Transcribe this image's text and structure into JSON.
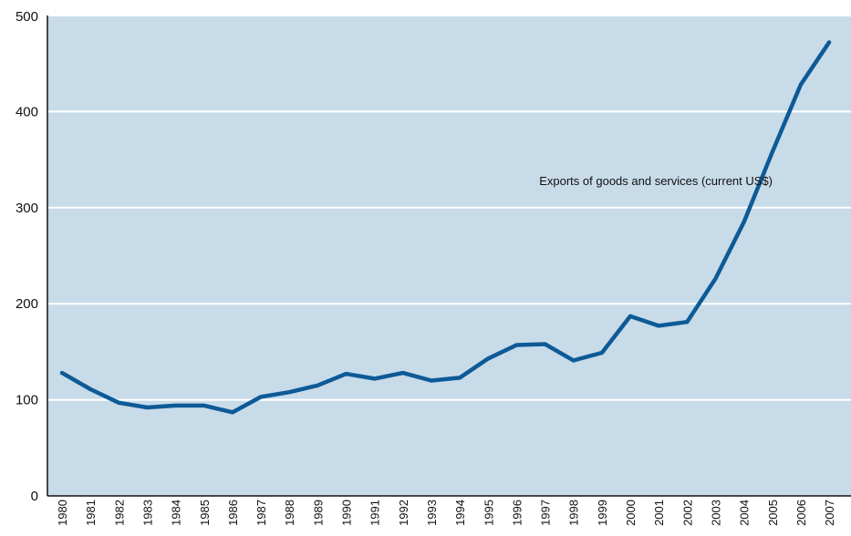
{
  "chart_data": {
    "type": "line",
    "title": "",
    "xlabel": "",
    "ylabel": "",
    "ylim": [
      0,
      500
    ],
    "yticks": [
      0,
      100,
      200,
      300,
      400,
      500
    ],
    "grid": true,
    "categories": [
      "1980",
      "1981",
      "1982",
      "1983",
      "1984",
      "1985",
      "1986",
      "1987",
      "1988",
      "1989",
      "1990",
      "1991",
      "1992",
      "1993",
      "1994",
      "1995",
      "1996",
      "1997",
      "1998",
      "1999",
      "2000",
      "2001",
      "2002",
      "2003",
      "2004",
      "2005",
      "2006",
      "2007"
    ],
    "series": [
      {
        "name": "Exports of goods and services (current US$)",
        "color": "#0d5a96",
        "values": [
          128,
          111,
          97,
          92,
          94,
          94,
          87,
          103,
          108,
          115,
          127,
          122,
          128,
          120,
          123,
          143,
          157,
          158,
          141,
          149,
          187,
          177,
          181,
          226,
          285,
          358,
          428,
          472
        ]
      }
    ],
    "colors": {
      "plot_background": "#c8dbe9",
      "gridline": "#ffffff",
      "axis": "#111111"
    }
  }
}
